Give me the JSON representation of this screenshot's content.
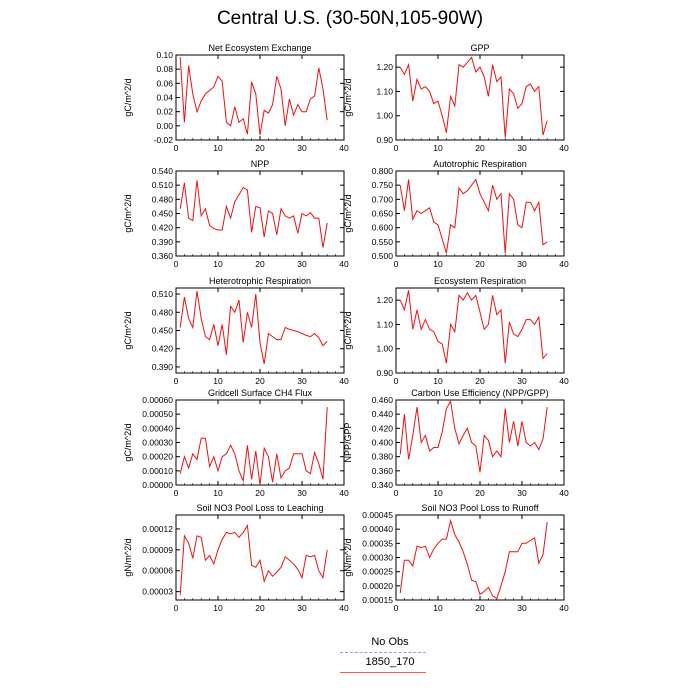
{
  "title": "Central U.S. (30-50N,105-90W)",
  "legend": {
    "items": [
      {
        "label": "No Obs",
        "color": "#9999ee",
        "style": "dashed"
      },
      {
        "label": "1850_170",
        "color": "#ff5555",
        "style": "solid"
      }
    ]
  },
  "series_color": "#ee1111",
  "chart_data": [
    {
      "type": "line",
      "title": "Net Ecosystem Exchange",
      "ylabel": "gC/m^2/d",
      "xlim": [
        0,
        40
      ],
      "ylim": [
        -0.02,
        0.1
      ],
      "xticks": [
        0,
        10,
        20,
        30,
        40
      ],
      "yticks": [
        -0.02,
        0.0,
        0.02,
        0.04,
        0.06,
        0.08,
        0.1
      ],
      "ytick_labels": [
        "-0.02",
        "0.00",
        "0.02",
        "0.04",
        "0.06",
        "0.08",
        "0.10"
      ],
      "x": [
        1,
        2,
        3,
        4,
        5,
        6,
        7,
        8,
        9,
        10,
        11,
        12,
        13,
        14,
        15,
        16,
        17,
        18,
        19,
        20,
        21,
        22,
        23,
        24,
        25,
        26,
        27,
        28,
        29,
        30,
        31,
        32,
        33,
        34,
        35,
        36
      ],
      "values": [
        0.097,
        0.005,
        0.085,
        0.045,
        0.02,
        0.035,
        0.045,
        0.05,
        0.055,
        0.07,
        0.063,
        0.005,
        0.0,
        0.027,
        0.005,
        0.01,
        -0.012,
        0.062,
        0.045,
        -0.013,
        0.022,
        0.018,
        0.03,
        0.07,
        0.052,
        0.0,
        0.038,
        0.015,
        0.03,
        0.02,
        0.02,
        0.038,
        0.042,
        0.082,
        0.052,
        0.008
      ]
    },
    {
      "type": "line",
      "title": "GPP",
      "ylabel": "gC/m^2/d",
      "xlim": [
        0,
        40
      ],
      "ylim": [
        0.9,
        1.25
      ],
      "xticks": [
        0,
        10,
        20,
        30,
        40
      ],
      "yticks": [
        0.9,
        1.0,
        1.1,
        1.2
      ],
      "ytick_labels": [
        "0.90",
        "1.00",
        "1.10",
        "1.20"
      ],
      "x": [
        1,
        2,
        3,
        4,
        5,
        6,
        7,
        8,
        9,
        10,
        11,
        12,
        13,
        14,
        15,
        16,
        17,
        18,
        19,
        20,
        21,
        22,
        23,
        24,
        25,
        26,
        27,
        28,
        29,
        30,
        31,
        32,
        33,
        34,
        35,
        36
      ],
      "values": [
        1.2,
        1.17,
        1.21,
        1.06,
        1.15,
        1.11,
        1.12,
        1.1,
        1.05,
        1.06,
        1.0,
        0.93,
        1.08,
        1.04,
        1.21,
        1.2,
        1.22,
        1.24,
        1.18,
        1.2,
        1.16,
        1.08,
        1.21,
        1.14,
        1.16,
        0.91,
        1.11,
        1.09,
        1.03,
        1.05,
        1.12,
        1.13,
        1.1,
        1.12,
        0.92,
        0.98
      ]
    },
    {
      "type": "line",
      "title": "NPP",
      "ylabel": "gC/m^2/d",
      "xlim": [
        0,
        40
      ],
      "ylim": [
        0.36,
        0.54
      ],
      "xticks": [
        0,
        10,
        20,
        30,
        40
      ],
      "yticks": [
        0.36,
        0.39,
        0.42,
        0.45,
        0.48,
        0.51,
        0.54
      ],
      "ytick_labels": [
        "0.360",
        "0.390",
        "0.420",
        "0.450",
        "0.480",
        "0.510",
        "0.540"
      ],
      "x": [
        1,
        2,
        3,
        4,
        5,
        6,
        7,
        8,
        9,
        10,
        11,
        12,
        13,
        14,
        15,
        16,
        17,
        18,
        19,
        20,
        21,
        22,
        23,
        24,
        25,
        26,
        27,
        28,
        29,
        30,
        31,
        32,
        33,
        34,
        35,
        36
      ],
      "values": [
        0.46,
        0.515,
        0.44,
        0.435,
        0.52,
        0.445,
        0.46,
        0.425,
        0.418,
        0.415,
        0.415,
        0.465,
        0.44,
        0.475,
        0.49,
        0.505,
        0.5,
        0.41,
        0.465,
        0.462,
        0.4,
        0.455,
        0.45,
        0.405,
        0.46,
        0.445,
        0.44,
        0.445,
        0.408,
        0.45,
        0.445,
        0.452,
        0.44,
        0.44,
        0.378,
        0.43
      ]
    },
    {
      "type": "line",
      "title": "Autotrophic Respiration",
      "ylabel": "gC/m^2/d",
      "xlim": [
        0,
        40
      ],
      "ylim": [
        0.5,
        0.8
      ],
      "xticks": [
        0,
        10,
        20,
        30,
        40
      ],
      "yticks": [
        0.5,
        0.55,
        0.6,
        0.65,
        0.7,
        0.75,
        0.8
      ],
      "ytick_labels": [
        "0.500",
        "0.550",
        "0.600",
        "0.650",
        "0.700",
        "0.750",
        "0.800"
      ],
      "x": [
        1,
        2,
        3,
        4,
        5,
        6,
        7,
        8,
        9,
        10,
        11,
        12,
        13,
        14,
        15,
        16,
        17,
        18,
        19,
        20,
        21,
        22,
        23,
        24,
        25,
        26,
        27,
        28,
        29,
        30,
        31,
        32,
        33,
        34,
        35,
        36
      ],
      "values": [
        0.75,
        0.66,
        0.77,
        0.63,
        0.66,
        0.65,
        0.66,
        0.67,
        0.62,
        0.61,
        0.56,
        0.51,
        0.61,
        0.6,
        0.74,
        0.72,
        0.73,
        0.75,
        0.77,
        0.72,
        0.69,
        0.66,
        0.75,
        0.7,
        0.72,
        0.51,
        0.72,
        0.7,
        0.61,
        0.6,
        0.69,
        0.69,
        0.66,
        0.69,
        0.54,
        0.55
      ]
    },
    {
      "type": "line",
      "title": "Heterotrophic Respiration",
      "ylabel": "gC/m^2/d",
      "xlim": [
        0,
        40
      ],
      "ylim": [
        0.38,
        0.52
      ],
      "xticks": [
        0,
        10,
        20,
        30,
        40
      ],
      "yticks": [
        0.39,
        0.42,
        0.45,
        0.48,
        0.51
      ],
      "ytick_labels": [
        "0.390",
        "0.420",
        "0.450",
        "0.480",
        "0.510"
      ],
      "x": [
        1,
        2,
        3,
        4,
        5,
        6,
        7,
        8,
        9,
        10,
        11,
        12,
        13,
        14,
        15,
        16,
        17,
        18,
        19,
        20,
        21,
        22,
        23,
        24,
        25,
        26,
        27,
        28,
        29,
        30,
        31,
        32,
        33,
        34,
        35,
        36
      ],
      "values": [
        0.455,
        0.505,
        0.47,
        0.455,
        0.515,
        0.47,
        0.44,
        0.435,
        0.46,
        0.425,
        0.46,
        0.41,
        0.49,
        0.48,
        0.5,
        0.43,
        0.48,
        0.455,
        0.51,
        0.43,
        0.395,
        0.445,
        0.44,
        0.435,
        0.435,
        0.455,
        0.452,
        0.45,
        0.448,
        0.445,
        0.442,
        0.44,
        0.445,
        0.438,
        0.425,
        0.432
      ]
    },
    {
      "type": "line",
      "title": "Ecosystem Respiration",
      "ylabel": "gC/m^2/d",
      "xlim": [
        0,
        40
      ],
      "ylim": [
        0.9,
        1.25
      ],
      "xticks": [
        0,
        10,
        20,
        30,
        40
      ],
      "yticks": [
        0.9,
        1.0,
        1.1,
        1.2
      ],
      "ytick_labels": [
        "0.90",
        "1.00",
        "1.10",
        "1.20"
      ],
      "x": [
        1,
        2,
        3,
        4,
        5,
        6,
        7,
        8,
        9,
        10,
        11,
        12,
        13,
        14,
        15,
        16,
        17,
        18,
        19,
        20,
        21,
        22,
        23,
        24,
        25,
        26,
        27,
        28,
        29,
        30,
        31,
        32,
        33,
        34,
        35,
        36
      ],
      "values": [
        1.2,
        1.16,
        1.24,
        1.08,
        1.16,
        1.08,
        1.12,
        1.08,
        1.07,
        1.03,
        1.02,
        0.94,
        1.1,
        1.07,
        1.22,
        1.2,
        1.23,
        1.2,
        1.22,
        1.15,
        1.08,
        1.1,
        1.22,
        1.14,
        1.16,
        0.94,
        1.11,
        1.06,
        1.05,
        1.08,
        1.12,
        1.12,
        1.1,
        1.13,
        0.96,
        0.98
      ]
    },
    {
      "type": "line",
      "title": "Gridcell Surface CH4 Flux",
      "ylabel": "gC/m^2/d",
      "xlim": [
        0,
        40
      ],
      "ylim": [
        0.0,
        0.0006
      ],
      "xticks": [
        0,
        10,
        20,
        30,
        40
      ],
      "yticks": [
        0.0,
        0.0001,
        0.0002,
        0.0003,
        0.0004,
        0.0005,
        0.0006
      ],
      "ytick_labels": [
        "0.00000",
        "0.00010",
        "0.00020",
        "0.00030",
        "0.00040",
        "0.00050",
        "0.00060"
      ],
      "x": [
        1,
        2,
        3,
        4,
        5,
        6,
        7,
        8,
        9,
        10,
        11,
        12,
        13,
        14,
        15,
        16,
        17,
        18,
        19,
        20,
        21,
        22,
        23,
        24,
        25,
        26,
        27,
        28,
        29,
        30,
        31,
        32,
        33,
        34,
        35,
        36
      ],
      "values": [
        8e-05,
        0.0002,
        0.00012,
        0.00022,
        0.00018,
        0.00033,
        0.00033,
        0.00013,
        0.0002,
        0.0001,
        0.0002,
        0.00022,
        0.00028,
        0.00022,
        0.0001,
        3e-05,
        0.00028,
        4e-05,
        0.00024,
        0.0,
        0.00026,
        0.0002,
        2e-05,
        0.00022,
        5e-05,
        0.0001,
        0.00012,
        0.00022,
        0.00022,
        0.00022,
        0.0001,
        8e-05,
        0.00023,
        0.00015,
        4e-05,
        0.00055
      ]
    },
    {
      "type": "line",
      "title": "Carbon Use Efficiency (NPP/GPP)",
      "ylabel": "NPP/GPP",
      "xlim": [
        0,
        40
      ],
      "ylim": [
        0.34,
        0.46
      ],
      "xticks": [
        0,
        10,
        20,
        30,
        40
      ],
      "yticks": [
        0.34,
        0.36,
        0.38,
        0.4,
        0.42,
        0.44,
        0.46
      ],
      "ytick_labels": [
        "0.340",
        "0.360",
        "0.380",
        "0.400",
        "0.420",
        "0.440",
        "0.460"
      ],
      "x": [
        1,
        2,
        3,
        4,
        5,
        6,
        7,
        8,
        9,
        10,
        11,
        12,
        13,
        14,
        15,
        16,
        17,
        18,
        19,
        20,
        21,
        22,
        23,
        24,
        25,
        26,
        27,
        28,
        29,
        30,
        31,
        32,
        33,
        34,
        35,
        36
      ],
      "values": [
        0.383,
        0.44,
        0.376,
        0.41,
        0.45,
        0.4,
        0.41,
        0.388,
        0.393,
        0.393,
        0.415,
        0.448,
        0.458,
        0.42,
        0.398,
        0.41,
        0.42,
        0.4,
        0.395,
        0.358,
        0.41,
        0.403,
        0.38,
        0.388,
        0.38,
        0.448,
        0.4,
        0.43,
        0.395,
        0.43,
        0.4,
        0.395,
        0.4,
        0.39,
        0.405,
        0.45
      ]
    },
    {
      "type": "line",
      "title": "Soil NO3 Pool Loss to Leaching",
      "ylabel": "gN/m^2/d",
      "xlim": [
        0,
        40
      ],
      "ylim": [
        1.8e-05,
        0.00014
      ],
      "xticks": [
        0,
        10,
        20,
        30,
        40
      ],
      "yticks": [
        3e-05,
        6e-05,
        9e-05,
        0.00012
      ],
      "ytick_labels": [
        "0.00003",
        "0.00006",
        "0.00009",
        "0.00012"
      ],
      "x": [
        1,
        2,
        3,
        4,
        5,
        6,
        7,
        8,
        9,
        10,
        11,
        12,
        13,
        14,
        15,
        16,
        17,
        18,
        19,
        20,
        21,
        22,
        23,
        24,
        25,
        26,
        27,
        28,
        29,
        30,
        31,
        32,
        33,
        34,
        35,
        36
      ],
      "values": [
        2.5e-05,
        0.00011,
        0.0001,
        7.8e-05,
        0.00011,
        0.000108,
        7.5e-05,
        8.2e-05,
        7e-05,
        9e-05,
        0.000105,
        0.000115,
        0.000113,
        0.000115,
        0.000108,
        0.000115,
        0.000125,
        6.8e-05,
        6.5e-05,
        7.5e-05,
        4.5e-05,
        6e-05,
        5.2e-05,
        5.8e-05,
        6.5e-05,
        8e-05,
        7.5e-05,
        7e-05,
        6.2e-05,
        5e-05,
        8.2e-05,
        8e-05,
        8.2e-05,
        6e-05,
        5e-05,
        9e-05
      ]
    },
    {
      "type": "line",
      "title": "Soil NO3 Pool Loss to Runoff",
      "ylabel": "gN/m^2/d",
      "xlim": [
        0,
        40
      ],
      "ylim": [
        0.00015,
        0.00045
      ],
      "xticks": [
        0,
        10,
        20,
        30,
        40
      ],
      "yticks": [
        0.00015,
        0.0002,
        0.00025,
        0.0003,
        0.00035,
        0.0004,
        0.00045
      ],
      "ytick_labels": [
        "0.00015",
        "0.00020",
        "0.00025",
        "0.00030",
        "0.00035",
        "0.00040",
        "0.00045"
      ],
      "x": [
        1,
        2,
        3,
        4,
        5,
        6,
        7,
        8,
        9,
        10,
        11,
        12,
        13,
        14,
        15,
        16,
        17,
        18,
        19,
        20,
        21,
        22,
        23,
        24,
        25,
        26,
        27,
        28,
        29,
        30,
        31,
        32,
        33,
        34,
        35,
        36
      ],
      "values": [
        0.000175,
        0.00029,
        0.00029,
        0.00027,
        0.00034,
        0.000335,
        0.00034,
        0.0003,
        0.00033,
        0.00035,
        0.000365,
        0.000365,
        0.00043,
        0.00038,
        0.000355,
        0.00032,
        0.000275,
        0.00022,
        0.000215,
        0.00017,
        0.00018,
        0.000195,
        0.000165,
        0.000155,
        0.0002,
        0.00025,
        0.00032,
        0.00032,
        0.00032,
        0.00035,
        0.00035,
        0.00036,
        0.00037,
        0.00028,
        0.00031,
        0.000425
      ]
    }
  ]
}
